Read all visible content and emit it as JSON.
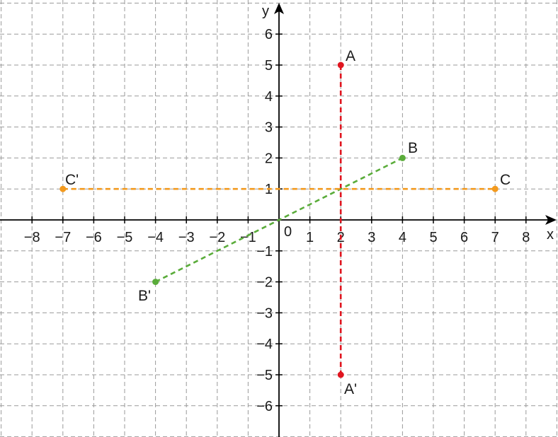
{
  "axes": {
    "x_label": "x",
    "y_label": "y",
    "x_ticks": [
      -8,
      -7,
      -6,
      -5,
      -4,
      -3,
      -2,
      -1,
      1,
      2,
      3,
      4,
      5,
      6,
      7,
      8
    ],
    "y_ticks": [
      -6,
      -5,
      -4,
      -3,
      -2,
      -1,
      1,
      2,
      3,
      4,
      5,
      6
    ],
    "origin_label": "0",
    "x_range": [
      -9,
      9
    ],
    "y_range": [
      -7,
      7
    ],
    "grid": true
  },
  "colors": {
    "pair_a": "#e0151f",
    "pair_b": "#5aac3a",
    "pair_c": "#f39a1e"
  },
  "points": {
    "A": {
      "label": "A",
      "x": 2,
      "y": 5
    },
    "A_": {
      "label": "A'",
      "x": 2,
      "y": -5
    },
    "B": {
      "label": "B",
      "x": 4,
      "y": 2
    },
    "B_": {
      "label": "B'",
      "x": -4,
      "y": -2
    },
    "C": {
      "label": "C",
      "x": 7,
      "y": 1
    },
    "C_": {
      "label": "C'",
      "x": -7,
      "y": 1
    }
  }
}
